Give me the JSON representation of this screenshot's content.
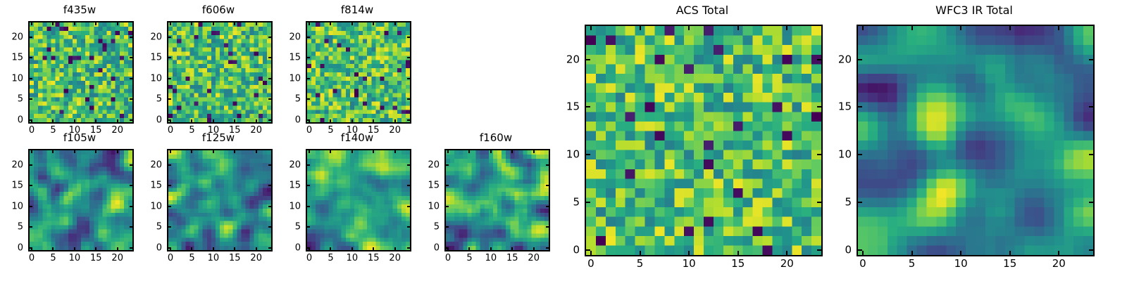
{
  "figure": {
    "background": "#ffffff",
    "colormap": "viridis"
  },
  "viridis_stops": [
    "#440154",
    "#472d7b",
    "#3b528b",
    "#2c728e",
    "#21918c",
    "#28ae80",
    "#5ec962",
    "#addc30",
    "#fde725"
  ],
  "chart_data": [
    {
      "type": "heatmap",
      "title": "f435w",
      "grid_n": 24,
      "xlim": [
        -0.5,
        23.5
      ],
      "ylim": [
        -0.5,
        23.5
      ],
      "xticks": [
        0,
        5,
        10,
        15,
        20
      ],
      "yticks": [
        0,
        5,
        10,
        15,
        20
      ],
      "colormap": "viridis",
      "noise_seed": 11,
      "smoothing": 0
    },
    {
      "type": "heatmap",
      "title": "f606w",
      "grid_n": 24,
      "xlim": [
        -0.5,
        23.5
      ],
      "ylim": [
        -0.5,
        23.5
      ],
      "xticks": [
        0,
        5,
        10,
        15,
        20
      ],
      "yticks": [
        0,
        5,
        10,
        15,
        20
      ],
      "colormap": "viridis",
      "noise_seed": 22,
      "smoothing": 0
    },
    {
      "type": "heatmap",
      "title": "f814w",
      "grid_n": 24,
      "xlim": [
        -0.5,
        23.5
      ],
      "ylim": [
        -0.5,
        23.5
      ],
      "xticks": [
        0,
        5,
        10,
        15,
        20
      ],
      "yticks": [
        0,
        5,
        10,
        15,
        20
      ],
      "colormap": "viridis",
      "noise_seed": 33,
      "smoothing": 0
    },
    {
      "type": "heatmap",
      "title": "f105w",
      "grid_n": 24,
      "xlim": [
        -0.5,
        23.5
      ],
      "ylim": [
        -0.5,
        23.5
      ],
      "xticks": [
        0,
        5,
        10,
        15,
        20
      ],
      "yticks": [
        0,
        5,
        10,
        15,
        20
      ],
      "colormap": "viridis",
      "noise_seed": 44,
      "smoothing": 2
    },
    {
      "type": "heatmap",
      "title": "f125w",
      "grid_n": 24,
      "xlim": [
        -0.5,
        23.5
      ],
      "ylim": [
        -0.5,
        23.5
      ],
      "xticks": [
        0,
        5,
        10,
        15,
        20
      ],
      "yticks": [
        0,
        5,
        10,
        15,
        20
      ],
      "colormap": "viridis",
      "noise_seed": 55,
      "smoothing": 2
    },
    {
      "type": "heatmap",
      "title": "f140w",
      "grid_n": 24,
      "xlim": [
        -0.5,
        23.5
      ],
      "ylim": [
        -0.5,
        23.5
      ],
      "xticks": [
        0,
        5,
        10,
        15,
        20
      ],
      "yticks": [
        0,
        5,
        10,
        15,
        20
      ],
      "colormap": "viridis",
      "noise_seed": 66,
      "smoothing": 2
    },
    {
      "type": "heatmap",
      "title": "f160w",
      "grid_n": 24,
      "xlim": [
        -0.5,
        23.5
      ],
      "ylim": [
        -0.5,
        23.5
      ],
      "xticks": [
        0,
        5,
        10,
        15,
        20
      ],
      "yticks": [
        0,
        5,
        10,
        15,
        20
      ],
      "colormap": "viridis",
      "noise_seed": 77,
      "smoothing": 2
    },
    {
      "type": "heatmap",
      "title": "ACS Total",
      "grid_n": 24,
      "xlim": [
        -0.5,
        23.5
      ],
      "ylim": [
        -0.5,
        23.5
      ],
      "xticks": [
        0,
        5,
        10,
        15,
        20
      ],
      "yticks": [
        0,
        5,
        10,
        15,
        20
      ],
      "colormap": "viridis",
      "noise_seed": 88,
      "smoothing": 0
    },
    {
      "type": "heatmap",
      "title": "WFC3 IR Total",
      "grid_n": 24,
      "xlim": [
        -0.5,
        23.5
      ],
      "ylim": [
        -0.5,
        23.5
      ],
      "xticks": [
        0,
        5,
        10,
        15,
        20
      ],
      "yticks": [
        0,
        5,
        10,
        15,
        20
      ],
      "colormap": "viridis",
      "noise_seed": 99,
      "smoothing": 3
    }
  ]
}
